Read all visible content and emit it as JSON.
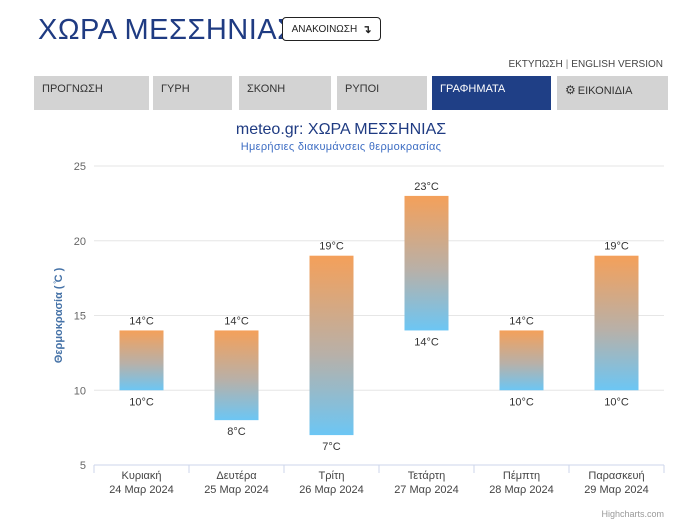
{
  "header": {
    "title": "ΧΩΡΑ ΜΕΣΣΗΝΙΑΣ",
    "announce_label": "ΑΝΑΚΟΙΝΩΣΗ",
    "announce_icon": "↴"
  },
  "top_links": {
    "print": "ΕΚΤΥΠΩΣΗ",
    "separator": "|",
    "english": "ENGLISH VERSION"
  },
  "tabs": [
    {
      "label": "ΠΡΟΓΝΩΣΗ",
      "active": false
    },
    {
      "label": "ΓΥΡΗ",
      "active": false
    },
    {
      "label": "ΣΚΟΝΗ",
      "active": false
    },
    {
      "label": "ΡΥΠΟΙ",
      "active": false
    },
    {
      "label": "ΓΡΑΦΗΜΑΤΑ",
      "active": true
    },
    {
      "label": "ΕΙΚΟΝΙΔΙΑ",
      "active": false,
      "icon": "gear-icon"
    }
  ],
  "credits": "Highcharts.com",
  "chart_data": {
    "type": "columnrange",
    "title": "meteo.gr: ΧΩΡΑ ΜΕΣΣΗΝΙΑΣ",
    "subtitle": "Ημερήσιες διακυμάνσεις θερμοκρασίας",
    "ylabel": "Θερμοκρασία ( ̊C )",
    "ylim": [
      5,
      25
    ],
    "yticks": [
      5,
      10,
      15,
      20,
      25
    ],
    "grid": true,
    "unit": "°C",
    "categories": [
      {
        "day": "Κυριακή",
        "date": "24 Μαρ 2024"
      },
      {
        "day": "Δευτέρα",
        "date": "25 Μαρ 2024"
      },
      {
        "day": "Τρίτη",
        "date": "26 Μαρ 2024"
      },
      {
        "day": "Τετάρτη",
        "date": "27 Μαρ 2024"
      },
      {
        "day": "Πέμπτη",
        "date": "28 Μαρ 2024"
      },
      {
        "day": "Παρασκευή",
        "date": "29 Μαρ 2024"
      }
    ],
    "low": [
      10,
      8,
      7,
      14,
      10,
      10
    ],
    "high": [
      14,
      14,
      19,
      23,
      14,
      19
    ],
    "colors": {
      "top": "#f4a05a",
      "bottom": "#6cc6f4",
      "grid": "#e6e6e6",
      "axis": "#ccd6eb",
      "label": "#333333",
      "ylabel": "#4572a7"
    }
  }
}
